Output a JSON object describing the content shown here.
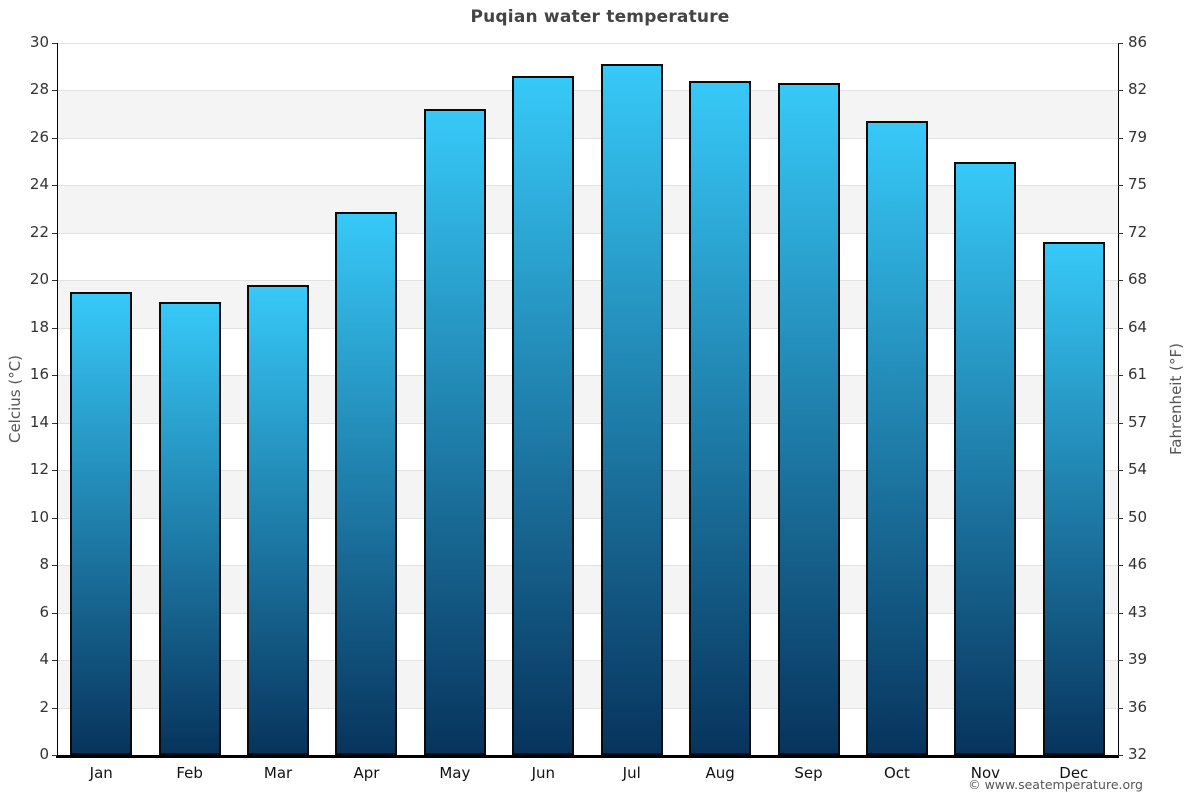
{
  "page": {
    "title": "Puqian water temperature"
  },
  "chart_data": {
    "type": "bar",
    "title": "Puqian water temperature",
    "categories": [
      "Jan",
      "Feb",
      "Mar",
      "Apr",
      "May",
      "Jun",
      "Jul",
      "Aug",
      "Sep",
      "Oct",
      "Nov",
      "Dec"
    ],
    "values": [
      19.5,
      19.1,
      19.8,
      22.9,
      27.2,
      28.6,
      29.1,
      28.4,
      28.3,
      26.7,
      25.0,
      21.6
    ],
    "ylabel_left": "Celcius (°C)",
    "ylabel_right": "Fahrenheit (°F)",
    "ylim_left": [
      0,
      30
    ],
    "yticks_left": [
      0,
      2,
      4,
      6,
      8,
      10,
      12,
      14,
      16,
      18,
      20,
      22,
      24,
      26,
      28,
      30
    ],
    "yticks_right": [
      32,
      36,
      39,
      43,
      46,
      50,
      54,
      57,
      61,
      64,
      68,
      72,
      75,
      79,
      82,
      86
    ],
    "legend": "none",
    "grid": "horizontal-bands",
    "colors": {
      "bar_gradient_top": "#37c9f8",
      "bar_gradient_bottom": "#07345d",
      "bar_border": "#0a0a0a",
      "band_light": "#ffffff",
      "band_dark": "#f4f4f4",
      "gridline": "#e2e2e2",
      "axis_line": "#000000",
      "title_text": "#444444",
      "tick_text": "#333333",
      "axis_label_text": "#555555"
    }
  },
  "footer": {
    "copyright": "© www.seatemperature.org"
  }
}
